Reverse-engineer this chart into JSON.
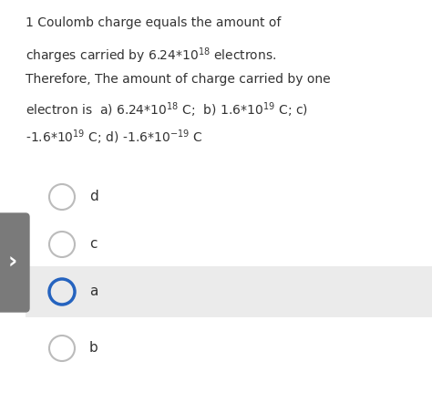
{
  "bg_color": "#ffffff",
  "sidebar_color": "#7a7a7a",
  "selected_bg": "#ebebeb",
  "text_color": "#333333",
  "circle_default_edge": "#bbbbbb",
  "circle_selected_edge": "#2563bf",
  "fig_width": 4.74,
  "fig_height": 4.42,
  "dpi": 100,
  "options": [
    "d",
    "c",
    "a",
    "b"
  ],
  "selected_option": "a"
}
